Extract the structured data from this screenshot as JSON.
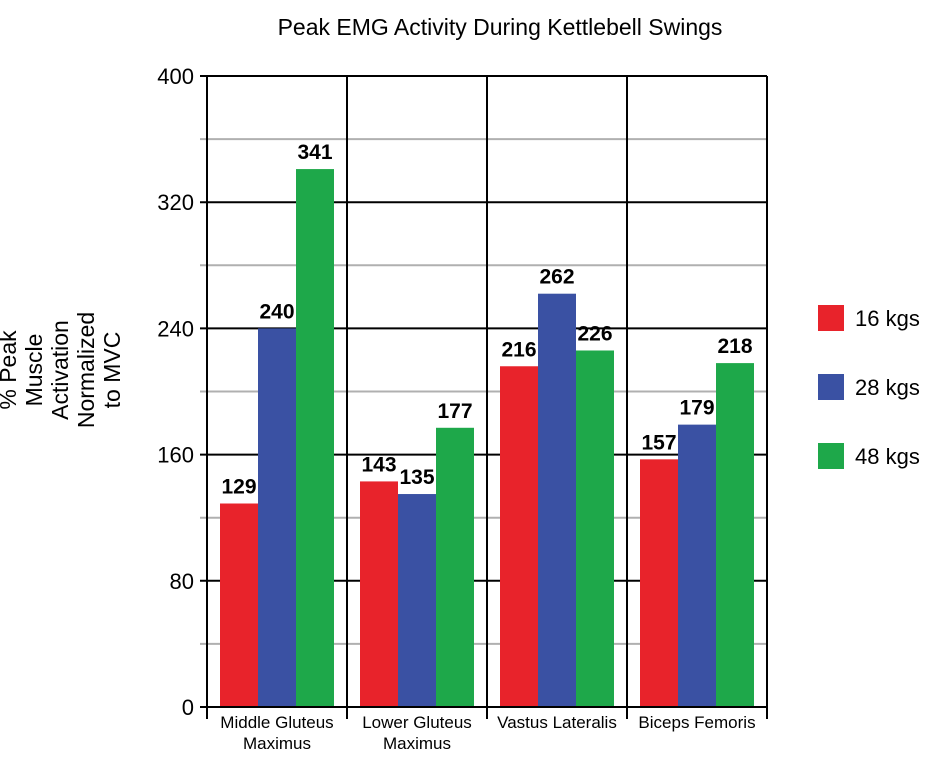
{
  "chart_data": {
    "type": "bar",
    "title": "Peak EMG Activity During Kettlebell Swings",
    "ylabel": "% Peak\nMuscle\nActivation\nNormalized\nto MVC",
    "xlabel": "",
    "categories": [
      "Middle Gluteus\nMaximus",
      "Lower Gluteus\nMaximus",
      "Vastus Lateralis",
      "Biceps Femoris"
    ],
    "series": [
      {
        "name": "16 kgs",
        "color": "#e8232b",
        "values": [
          129,
          143,
          216,
          157
        ]
      },
      {
        "name": "28 kgs",
        "color": "#3a51a3",
        "values": [
          240,
          135,
          262,
          179
        ]
      },
      {
        "name": "48 kgs",
        "color": "#1ea84a",
        "values": [
          341,
          177,
          226,
          218
        ]
      }
    ],
    "ylim": [
      0,
      400
    ],
    "yticks": [
      0,
      80,
      160,
      240,
      320,
      400
    ],
    "grid": true,
    "legend_position": "right",
    "data_labels": true
  }
}
